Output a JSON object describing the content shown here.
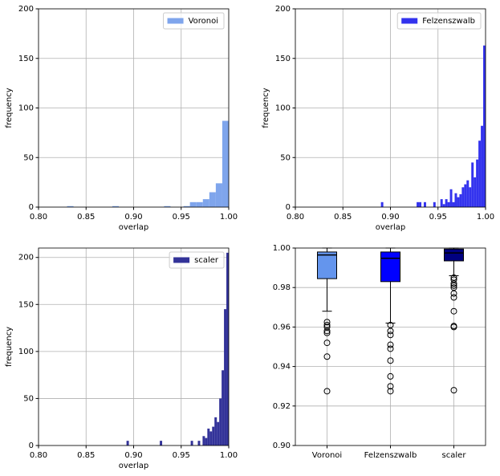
{
  "chart_data": [
    {
      "type": "histogram",
      "xlabel": "overlap",
      "ylabel": "frequency",
      "grid": true,
      "legend": "upper right",
      "xlim": [
        0.8,
        1.0
      ],
      "ylim": [
        0,
        200
      ],
      "xticks": [
        {
          "value": 0.8,
          "label": "0.80"
        },
        {
          "value": 0.85,
          "label": "0.85"
        },
        {
          "value": 0.9,
          "label": "0.90"
        },
        {
          "value": 0.95,
          "label": "0.95"
        },
        {
          "value": 1.0,
          "label": "1.00"
        }
      ],
      "yticks": [
        0,
        50,
        100,
        150,
        200
      ],
      "bins": [
        0.83,
        0.8368,
        0.8436,
        0.8504,
        0.8572,
        0.864,
        0.8708,
        0.8776,
        0.8844,
        0.8912,
        0.898,
        0.9048,
        0.9116,
        0.9184,
        0.9252,
        0.932,
        0.9388,
        0.9456,
        0.9524,
        0.9592,
        0.966,
        0.9728,
        0.9796,
        0.9864,
        0.9932,
        1.0
      ],
      "series": [
        {
          "name": "Voronoi",
          "color": "#7fa5ec",
          "values": [
            1,
            0,
            0,
            0,
            0,
            0,
            0,
            1,
            0,
            0,
            0,
            0,
            0,
            0,
            0,
            1,
            0,
            0,
            1,
            5,
            5,
            8,
            15,
            24,
            87
          ]
        }
      ]
    },
    {
      "type": "histogram",
      "xlabel": "overlap",
      "ylabel": "frequency",
      "grid": true,
      "legend": "upper right",
      "xlim": [
        0.8,
        1.0
      ],
      "ylim": [
        0,
        200
      ],
      "xticks": [
        {
          "value": 0.8,
          "label": "0.80"
        },
        {
          "value": 0.85,
          "label": "0.85"
        },
        {
          "value": 0.9,
          "label": "0.90"
        },
        {
          "value": 0.95,
          "label": "0.95"
        },
        {
          "value": 1.0,
          "label": "1.00"
        }
      ],
      "yticks": [
        0,
        50,
        100,
        150,
        200
      ],
      "bins": [
        0.885,
        0.8875,
        0.89,
        0.8925,
        0.895,
        0.8975,
        0.9,
        0.9025,
        0.905,
        0.9075,
        0.91,
        0.9125,
        0.915,
        0.9175,
        0.92,
        0.9225,
        0.925,
        0.9275,
        0.93,
        0.9325,
        0.935,
        0.9375,
        0.94,
        0.9425,
        0.945,
        0.9475,
        0.95,
        0.9525,
        0.955,
        0.9575,
        0.96,
        0.9625,
        0.965,
        0.9675,
        0.97,
        0.9725,
        0.975,
        0.9775,
        0.98,
        0.9825,
        0.985,
        0.9875,
        0.99,
        0.9925,
        0.995,
        0.9975,
        1.0
      ],
      "series": [
        {
          "name": "Felzenszwalb",
          "color": "#3333ee",
          "values": [
            0,
            0,
            5,
            0,
            0,
            0,
            0,
            0,
            0,
            0,
            0,
            0,
            0,
            0,
            0,
            0,
            0,
            5,
            5,
            0,
            5,
            0,
            0,
            0,
            5,
            0,
            0,
            8,
            3,
            8,
            5,
            18,
            5,
            14,
            10,
            13,
            20,
            23,
            27,
            20,
            45,
            30,
            48,
            67,
            82,
            163
          ]
        }
      ]
    },
    {
      "type": "histogram",
      "xlabel": "overlap",
      "ylabel": "frequency",
      "grid": true,
      "legend": "upper right",
      "xlim": [
        0.8,
        1.0
      ],
      "ylim": [
        0,
        210
      ],
      "xticks": [
        {
          "value": 0.8,
          "label": "0.80"
        },
        {
          "value": 0.85,
          "label": "0.85"
        },
        {
          "value": 0.9,
          "label": "0.90"
        },
        {
          "value": 0.95,
          "label": "0.95"
        },
        {
          "value": 1.0,
          "label": "1.00"
        }
      ],
      "yticks": [
        0,
        50,
        100,
        150,
        200
      ],
      "bins": [
        0.885,
        0.8875,
        0.89,
        0.8925,
        0.895,
        0.8975,
        0.9,
        0.9025,
        0.905,
        0.9075,
        0.91,
        0.9125,
        0.915,
        0.9175,
        0.92,
        0.9225,
        0.925,
        0.9275,
        0.93,
        0.9325,
        0.935,
        0.9375,
        0.94,
        0.9425,
        0.945,
        0.9475,
        0.95,
        0.9525,
        0.955,
        0.9575,
        0.96,
        0.9625,
        0.965,
        0.9675,
        0.97,
        0.9725,
        0.975,
        0.9775,
        0.98,
        0.9825,
        0.985,
        0.9875,
        0.99,
        0.9925,
        0.995,
        0.9975,
        1.0
      ],
      "series": [
        {
          "name": "scaler",
          "color": "#333399",
          "values": [
            0,
            0,
            0,
            5,
            0,
            0,
            0,
            0,
            0,
            0,
            0,
            0,
            0,
            0,
            0,
            0,
            0,
            5,
            0,
            0,
            0,
            0,
            0,
            0,
            0,
            0,
            0,
            0,
            0,
            0,
            5,
            0,
            0,
            5,
            0,
            10,
            8,
            18,
            15,
            20,
            30,
            25,
            50,
            80,
            145,
            205
          ]
        }
      ]
    },
    {
      "type": "boxplot",
      "grid": true,
      "ylim": [
        0.9,
        1.0
      ],
      "yticks": [
        {
          "value": 0.9,
          "label": "0.90"
        },
        {
          "value": 0.92,
          "label": "0.92"
        },
        {
          "value": 0.94,
          "label": "0.94"
        },
        {
          "value": 0.96,
          "label": "0.96"
        },
        {
          "value": 0.98,
          "label": "0.98"
        },
        {
          "value": 1.0,
          "label": "1.00"
        }
      ],
      "categories": [
        "Voronoi",
        "Felzenszwalb",
        "scaler"
      ],
      "boxes": [
        {
          "color": "#6495ed",
          "whislo": 0.968,
          "q1": 0.9845,
          "median": 0.9965,
          "q3": 0.998,
          "whishi": 1.0,
          "fliers": [
            0.9625,
            0.961,
            0.96,
            0.958,
            0.957,
            0.952,
            0.945,
            0.9275
          ]
        },
        {
          "color": "#0000ff",
          "whislo": 0.962,
          "q1": 0.983,
          "median": 0.9948,
          "q3": 0.998,
          "whishi": 1.0,
          "fliers": [
            0.961,
            0.958,
            0.956,
            0.951,
            0.949,
            0.943,
            0.935,
            0.93,
            0.9275
          ]
        },
        {
          "color": "#000080",
          "whislo": 0.986,
          "q1": 0.9935,
          "median": 0.9975,
          "q3": 0.9995,
          "whishi": 1.0,
          "fliers": [
            0.985,
            0.984,
            0.982,
            0.981,
            0.98,
            0.977,
            0.975,
            0.968,
            0.9605,
            0.96,
            0.928
          ]
        }
      ]
    }
  ]
}
